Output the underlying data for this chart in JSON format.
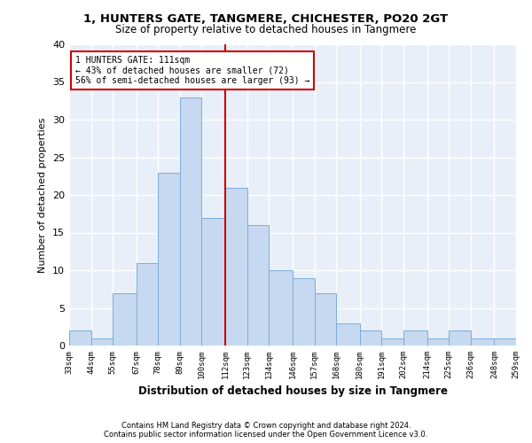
{
  "title1": "1, HUNTERS GATE, TANGMERE, CHICHESTER, PO20 2GT",
  "title2": "Size of property relative to detached houses in Tangmere",
  "xlabel": "Distribution of detached houses by size in Tangmere",
  "ylabel": "Number of detached properties",
  "footer1": "Contains HM Land Registry data © Crown copyright and database right 2024.",
  "footer2": "Contains public sector information licensed under the Open Government Licence v3.0.",
  "annotation_line1": "1 HUNTERS GATE: 111sqm",
  "annotation_line2": "← 43% of detached houses are smaller (72)",
  "annotation_line3": "56% of semi-detached houses are larger (93) →",
  "bar_left_edges": [
    33,
    44,
    55,
    67,
    78,
    89,
    100,
    112,
    123,
    134,
    146,
    157,
    168,
    180,
    191,
    202,
    214,
    225,
    236,
    248
  ],
  "bar_widths": [
    11,
    11,
    12,
    11,
    11,
    11,
    12,
    11,
    11,
    12,
    11,
    11,
    12,
    11,
    11,
    12,
    11,
    11,
    12,
    11
  ],
  "bar_heights": [
    2,
    1,
    7,
    11,
    23,
    33,
    17,
    21,
    16,
    10,
    9,
    7,
    3,
    2,
    1,
    2,
    1,
    2,
    1,
    1
  ],
  "bar_color": "#c6d9f0",
  "bar_edge_color": "#7aacdc",
  "vline_x": 112,
  "vline_color": "#cc0000",
  "annotation_box_color": "#cc0000",
  "bg_color": "#e8eff8",
  "grid_color": "#ffffff",
  "fig_bg_color": "#ffffff",
  "ylim": [
    0,
    40
  ],
  "yticks": [
    0,
    5,
    10,
    15,
    20,
    25,
    30,
    35,
    40
  ],
  "tick_labels": [
    "33sqm",
    "44sqm",
    "55sqm",
    "67sqm",
    "78sqm",
    "89sqm",
    "100sqm",
    "112sqm",
    "123sqm",
    "134sqm",
    "146sqm",
    "157sqm",
    "168sqm",
    "180sqm",
    "191sqm",
    "202sqm",
    "214sqm",
    "225sqm",
    "236sqm",
    "248sqm",
    "259sqm"
  ]
}
